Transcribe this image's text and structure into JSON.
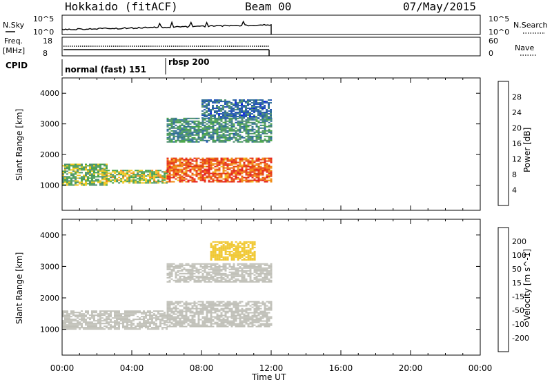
{
  "header": {
    "title": "Hokkaido (fitACF)",
    "beam": "Beam 00",
    "date": "07/May/2015"
  },
  "noise_panel": {
    "left_label": "N.Sky",
    "left_ticks": [
      "10^5",
      "10^0"
    ],
    "right_ticks": [
      "10^5",
      "10^0"
    ],
    "right_label": "N.Search"
  },
  "freq_panel": {
    "left_label_1": "Freq.",
    "left_label_2": "[MHz]",
    "left_ticks": [
      "18",
      "8"
    ],
    "right_ticks": [
      "60",
      "0"
    ],
    "right_label": "Nave"
  },
  "cpid": {
    "label": "CPID",
    "modes": [
      "normal (fast) 151",
      "rbsp 200"
    ]
  },
  "colors": {
    "power_scale": [
      "#0a1ee6",
      "#1e50b4",
      "#2f6e95",
      "#4d8f6e",
      "#47a447",
      "#f0c81e",
      "#f08c14",
      "#e64614",
      "#e61e1e"
    ],
    "velocity_scale": [
      "#e61e1e",
      "#f06414",
      "#f0a014",
      "#f0c832",
      "#c0c0b8",
      "#78c850",
      "#3c9b3c",
      "#2a6e8c",
      "#1e3cc8"
    ]
  },
  "chart_data": [
    {
      "type": "heatmap",
      "title": "",
      "ylabel": "Slant Range [km]",
      "xlabel": "",
      "y_ticks": [
        "1000",
        "2000",
        "3000",
        "4000"
      ],
      "ylim": [
        180,
        4500
      ],
      "colorbar": {
        "label": "Power [dB]",
        "ticks": [
          "28",
          "24",
          "20",
          "16",
          "12",
          "8",
          "4"
        ],
        "range": [
          0,
          32
        ]
      },
      "x_range_hours": [
        0,
        24
      ],
      "data_until_hour": 12,
      "echo_regions": [
        {
          "t": [
            0.0,
            2.5
          ],
          "range_km": [
            1000,
            1700
          ],
          "power_db": 16
        },
        {
          "t": [
            2.5,
            6.0
          ],
          "range_km": [
            1050,
            1500
          ],
          "power_db": 18
        },
        {
          "t": [
            6.0,
            12.0
          ],
          "range_km": [
            1100,
            1900
          ],
          "power_db": 26
        },
        {
          "t": [
            6.0,
            12.0
          ],
          "range_km": [
            2400,
            3200
          ],
          "power_db": 12
        },
        {
          "t": [
            8.0,
            12.0
          ],
          "range_km": [
            3200,
            3800
          ],
          "power_db": 8
        }
      ]
    },
    {
      "type": "heatmap",
      "title": "",
      "ylabel": "Slant Range [km]",
      "xlabel": "Time UT",
      "y_ticks": [
        "1000",
        "2000",
        "3000",
        "4000"
      ],
      "x_ticks": [
        "00:00",
        "04:00",
        "08:00",
        "12:00",
        "16:00",
        "20:00",
        "00:00"
      ],
      "ylim": [
        180,
        4500
      ],
      "colorbar": {
        "label": "Velocity [m s^-1]",
        "ticks": [
          "200",
          "100",
          "50",
          "15",
          "-15",
          "-50",
          "-100",
          "-200"
        ],
        "range": [
          -250,
          250
        ]
      },
      "x_range_hours": [
        0,
        24
      ],
      "data_until_hour": 12,
      "echo_regions": [
        {
          "t": [
            0.0,
            6.0
          ],
          "range_km": [
            1000,
            1600
          ],
          "velocity": 0
        },
        {
          "t": [
            6.0,
            12.0
          ],
          "range_km": [
            1100,
            1900
          ],
          "velocity": 0
        },
        {
          "t": [
            6.0,
            12.0
          ],
          "range_km": [
            2500,
            3100
          ],
          "velocity": 0
        },
        {
          "t": [
            8.5,
            11.0
          ],
          "range_km": [
            3200,
            3800
          ],
          "velocity": -40
        }
      ]
    }
  ]
}
